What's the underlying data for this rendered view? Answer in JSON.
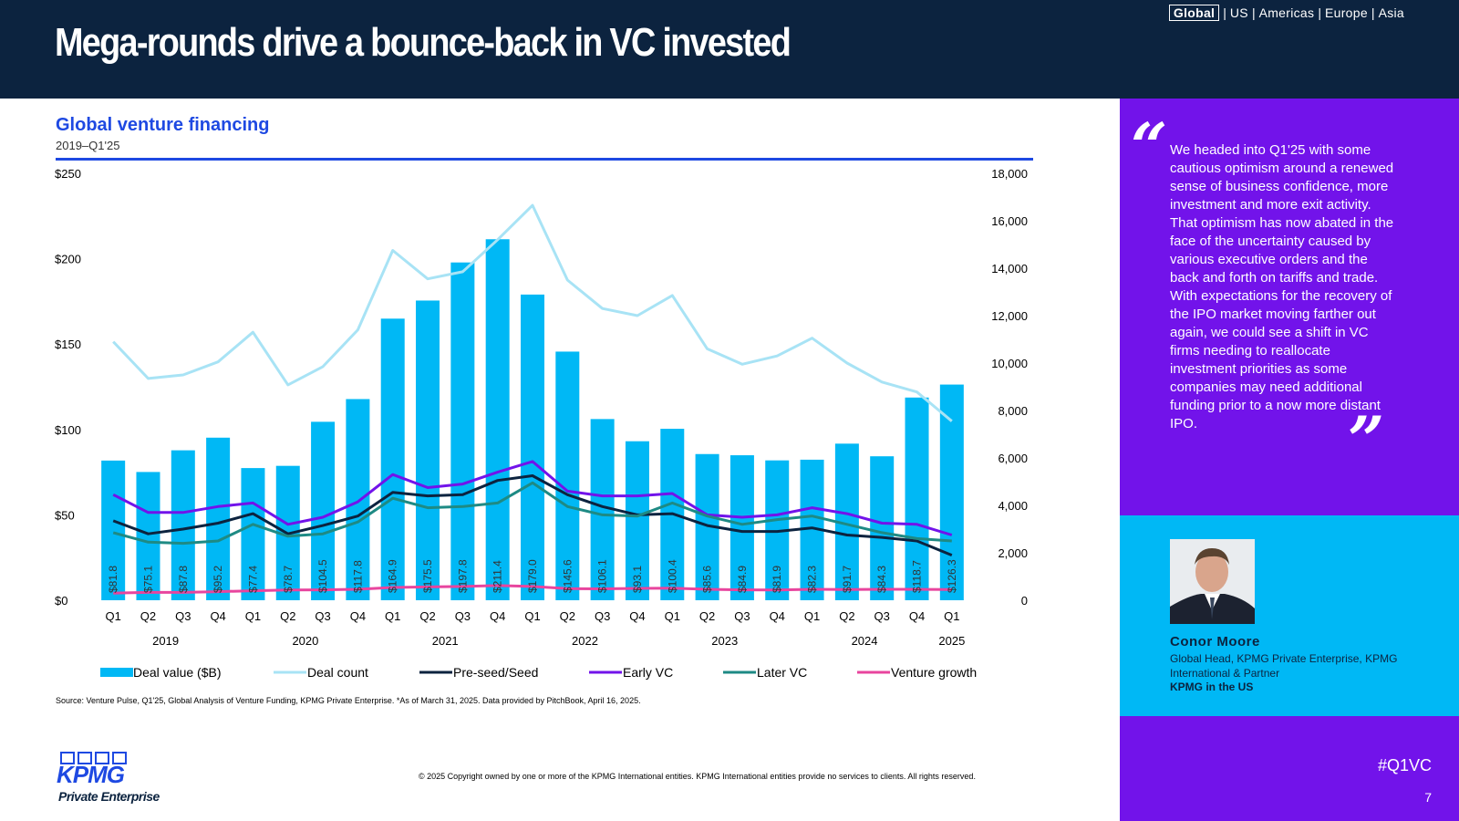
{
  "header": {
    "title": "Mega-rounds drive a bounce-back in VC invested",
    "regions": [
      "Global",
      "US",
      "Americas",
      "Europe",
      "Asia"
    ],
    "active_region": "Global"
  },
  "chart_header": {
    "title": "Global venture financing",
    "subtitle": "2019–Q1'25"
  },
  "chart_data": {
    "type": "bar",
    "title": "Global venture financing",
    "subtitle": "2019–Q1'25",
    "quarters": [
      "Q1",
      "Q2",
      "Q3",
      "Q4",
      "Q1",
      "Q2",
      "Q3",
      "Q4",
      "Q1",
      "Q2",
      "Q3",
      "Q4",
      "Q1",
      "Q2",
      "Q3",
      "Q4",
      "Q1",
      "Q2",
      "Q3",
      "Q4",
      "Q1",
      "Q2",
      "Q3",
      "Q4",
      "Q1"
    ],
    "years": [
      {
        "label": "2019",
        "start": 0,
        "end": 3
      },
      {
        "label": "2020",
        "start": 4,
        "end": 7
      },
      {
        "label": "2021",
        "start": 8,
        "end": 11
      },
      {
        "label": "2022",
        "start": 12,
        "end": 15
      },
      {
        "label": "2023",
        "start": 16,
        "end": 19
      },
      {
        "label": "2024",
        "start": 20,
        "end": 23
      },
      {
        "label": "2025",
        "start": 24,
        "end": 24
      }
    ],
    "left_axis": {
      "min": 0,
      "max": 250,
      "ticks": [
        0,
        50,
        100,
        150,
        200,
        250
      ],
      "tick_labels": [
        "$0",
        "$50",
        "$100",
        "$150",
        "$200",
        "$250"
      ]
    },
    "right_axis": {
      "min": 0,
      "max": 18000,
      "ticks": [
        0,
        2000,
        4000,
        6000,
        8000,
        10000,
        12000,
        14000,
        16000,
        18000
      ],
      "tick_labels": [
        "0",
        "2,000",
        "4,000",
        "6,000",
        "8,000",
        "10,000",
        "12,000",
        "14,000",
        "16,000",
        "18,000"
      ]
    },
    "bars": {
      "name": "Deal value ($B)",
      "color": "#00b8f5",
      "values": [
        81.8,
        75.1,
        87.8,
        95.2,
        77.4,
        78.7,
        104.5,
        117.8,
        164.9,
        175.5,
        197.8,
        211.4,
        179.0,
        145.6,
        106.1,
        93.1,
        100.4,
        85.6,
        84.9,
        81.9,
        82.3,
        91.7,
        84.3,
        118.7,
        126.3
      ],
      "labels": [
        "$81.8",
        "$75.1",
        "$87.8",
        "$95.2",
        "$77.4",
        "$78.7",
        "$104.5",
        "$117.8",
        "$164.9",
        "$175.5",
        "$197.8",
        "$211.4",
        "$179.0",
        "$145.6",
        "$106.1",
        "$93.1",
        "$100.4",
        "$85.6",
        "$84.9",
        "$81.9",
        "$82.3",
        "$91.7",
        "$84.3",
        "$118.7",
        "$126.3"
      ]
    },
    "series": [
      {
        "name": "Deal count",
        "color": "#a8e3f5",
        "values": [
          10900,
          9350,
          9500,
          10050,
          11300,
          9080,
          9850,
          11400,
          14750,
          13550,
          13850,
          15200,
          16650,
          13500,
          12300,
          12000,
          12850,
          10600,
          9950,
          10300,
          11050,
          10000,
          9200,
          8780,
          7550
        ]
      },
      {
        "name": "Pre-seed/Seed",
        "color": "#0c233f",
        "values": [
          3350,
          2800,
          3000,
          3250,
          3650,
          2800,
          3150,
          3550,
          4550,
          4400,
          4450,
          5050,
          5250,
          4450,
          3950,
          3600,
          3650,
          3150,
          2900,
          2900,
          3050,
          2750,
          2650,
          2500,
          1900
        ]
      },
      {
        "name": "Early VC",
        "color": "#7213ea",
        "values": [
          4450,
          3700,
          3700,
          3950,
          4100,
          3200,
          3500,
          4150,
          5300,
          4750,
          4900,
          5400,
          5850,
          4600,
          4400,
          4400,
          4500,
          3600,
          3500,
          3600,
          3900,
          3650,
          3250,
          3200,
          2750
        ]
      },
      {
        "name": "Later VC",
        "color": "#1e8a84",
        "values": [
          2850,
          2450,
          2400,
          2500,
          3200,
          2700,
          2800,
          3300,
          4300,
          3900,
          3950,
          4100,
          4950,
          3950,
          3600,
          3550,
          4100,
          3550,
          3200,
          3400,
          3550,
          3200,
          2850,
          2600,
          2500
        ]
      },
      {
        "name": "Venture growth",
        "color": "#e8459e",
        "values": [
          300,
          330,
          330,
          360,
          400,
          430,
          440,
          460,
          540,
          560,
          580,
          620,
          580,
          490,
          480,
          500,
          510,
          460,
          440,
          430,
          460,
          450,
          460,
          460,
          450
        ]
      }
    ],
    "legend_position": "bottom"
  },
  "source_note": "Source: Venture Pulse, Q1'25, Global Analysis of Venture Funding, KPMG Private Enterprise. *As of March 31, 2025. Data provided by PitchBook, April 16, 2025.",
  "logo": {
    "text": "KPMG",
    "subtitle": "Private Enterprise"
  },
  "copyright": "© 2025 Copyright owned by one or more of the KPMG International entities. KPMG International entities provide no services to clients. All rights reserved.",
  "quote": {
    "text": "We headed into Q1'25 with some cautious optimism around a renewed sense of business confidence, more investment and more exit activity. That optimism has now abated in the face of the uncertainty caused by various executive orders and the back and forth on tariffs and trade. With expectations for the recovery of the IPO market moving farther out again, we could see a shift in VC firms needing to reallocate investment priorities as some companies may need additional funding prior to a now more distant IPO."
  },
  "person": {
    "name": "Conor Moore",
    "role": "Global Head, KPMG Private Enterprise, KPMG International & Partner",
    "org": "KPMG in the US"
  },
  "footer": {
    "hashtag": "#Q1VC",
    "page_number": "7"
  },
  "colors": {
    "navy": "#0c233f",
    "purple": "#7213ea",
    "cyan": "#00b8f5",
    "blue": "#1e49e2"
  }
}
